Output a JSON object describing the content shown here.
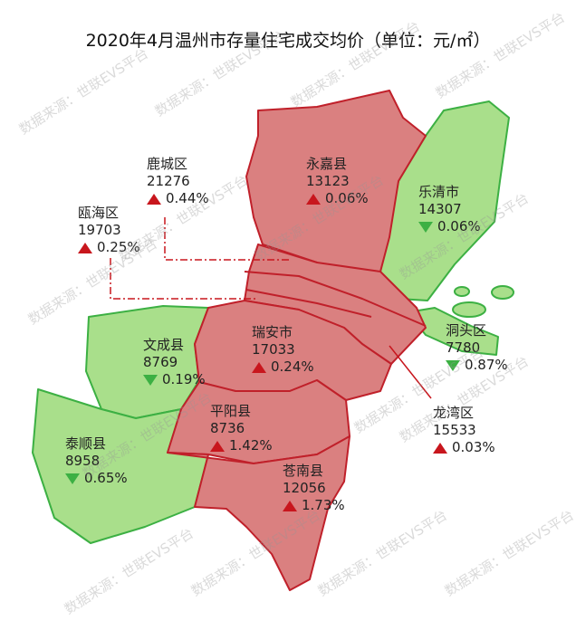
{
  "title": "2020年4月温州市存量住宅成交均价（单位：元/㎡）",
  "watermark": "数据来源：世联EVS平台",
  "colors": {
    "rise_fill": "#da8080",
    "rise_stroke": "#c0202a",
    "fall_fill": "#a9df8b",
    "fall_stroke": "#3cb043",
    "up_marker": "#c8161d",
    "down_marker": "#3cb043"
  },
  "districts": [
    {
      "name": "永嘉县",
      "price": "13123",
      "change": "0.06%",
      "direction": "up"
    },
    {
      "name": "鹿城区",
      "price": "21276",
      "change": "0.44%",
      "direction": "up"
    },
    {
      "name": "瓯海区",
      "price": "19703",
      "change": "0.25%",
      "direction": "up"
    },
    {
      "name": "乐清市",
      "price": "14307",
      "change": "0.06%",
      "direction": "down"
    },
    {
      "name": "洞头区",
      "price": "7780",
      "change": "0.87%",
      "direction": "down"
    },
    {
      "name": "瑞安市",
      "price": "17033",
      "change": "0.24%",
      "direction": "up"
    },
    {
      "name": "文成县",
      "price": "8769",
      "change": "0.19%",
      "direction": "down"
    },
    {
      "name": "平阳县",
      "price": "8736",
      "change": "1.42%",
      "direction": "up"
    },
    {
      "name": "龙湾区",
      "price": "15533",
      "change": "0.03%",
      "direction": "up"
    },
    {
      "name": "泰顺县",
      "price": "8958",
      "change": "0.65%",
      "direction": "down"
    },
    {
      "name": "苍南县",
      "price": "12056",
      "change": "1.73%",
      "direction": "up"
    }
  ]
}
